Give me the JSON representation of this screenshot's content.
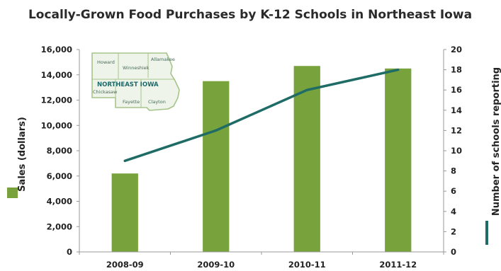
{
  "chart_data": {
    "type": "bar",
    "title": "Locally-Grown Food Purchases by K-12 Schools in Northeast Iowa",
    "categories": [
      "2008-09",
      "2009-10",
      "2010-11",
      "2011-12"
    ],
    "series": [
      {
        "name": "Sales (dollars)",
        "kind": "bar",
        "axis": "left",
        "values": [
          6200,
          13500,
          14700,
          14500
        ],
        "color": "#78a23c"
      },
      {
        "name": "Number of schools reporting",
        "kind": "line",
        "axis": "right",
        "values": [
          9,
          12,
          16,
          18
        ],
        "color": "#1f6b66"
      }
    ],
    "ylabel": "Sales (dollars)",
    "y2label": "Number of schools reporting",
    "ylim": [
      0,
      16000
    ],
    "y2lim": [
      0,
      20
    ],
    "yticks": [
      "0",
      "2,000",
      "4,000",
      "6,000",
      "8,000",
      "10,000",
      "12,000",
      "14,000",
      "16,000"
    ],
    "y2ticks": [
      "0",
      "2",
      "4",
      "6",
      "8",
      "10",
      "12",
      "14",
      "16",
      "18",
      "20"
    ],
    "grid": false,
    "inset_map": {
      "title": "NORTHEAST IOWA",
      "counties": [
        "Howard",
        "Winneshiek",
        "Allamakee",
        "Chickasaw",
        "Fayette",
        "Clayton"
      ]
    }
  },
  "colors": {
    "bar": "#78a23c",
    "line": "#1f6b66",
    "map_fill": "#eef4ea",
    "map_stroke": "#a6c48a"
  }
}
